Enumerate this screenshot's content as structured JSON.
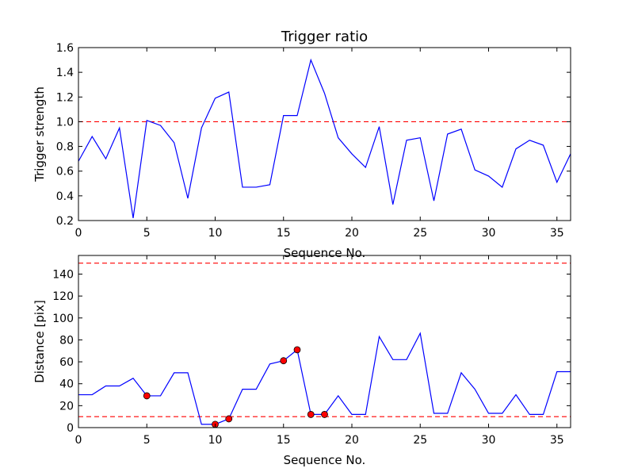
{
  "chart_data": [
    {
      "type": "line",
      "title": "Trigger ratio",
      "xlabel": "Sequence No.",
      "ylabel": "Trigger strength",
      "xlim": [
        0,
        36
      ],
      "ylim": [
        0.2,
        1.6
      ],
      "xticks": [
        0,
        5,
        10,
        15,
        20,
        25,
        30,
        35
      ],
      "yticks": [
        0.2,
        0.4,
        0.6,
        0.8,
        1.0,
        1.2,
        1.4,
        1.6
      ],
      "ytick_labels": [
        "0.2",
        "0.4",
        "0.6",
        "0.8",
        "1.0",
        "1.2",
        "1.4",
        "1.6"
      ],
      "grid": false,
      "series": [
        {
          "color": "#0000ff",
          "x": [
            0,
            1,
            2,
            3,
            4,
            5,
            6,
            7,
            8,
            9,
            10,
            11,
            12,
            13,
            14,
            15,
            16,
            17,
            18,
            19,
            20,
            21,
            22,
            23,
            24,
            25,
            26,
            27,
            28,
            29,
            30,
            31,
            32,
            33,
            34,
            35,
            36
          ],
          "y": [
            0.68,
            0.88,
            0.7,
            0.95,
            0.22,
            1.01,
            0.97,
            0.83,
            0.38,
            0.95,
            1.19,
            1.24,
            0.47,
            0.47,
            0.49,
            1.05,
            1.05,
            1.5,
            1.23,
            0.87,
            0.74,
            0.63,
            0.96,
            0.33,
            0.85,
            0.87,
            0.36,
            0.9,
            0.94,
            0.61,
            0.56,
            0.47,
            0.78,
            0.85,
            0.81,
            0.51,
            0.74
          ]
        }
      ],
      "reference_lines": [
        {
          "y": 1.0,
          "color": "#ff0000",
          "style": "dashed"
        }
      ]
    },
    {
      "type": "line",
      "title": "",
      "xlabel": "Sequence No.",
      "ylabel": "Distance [pix]",
      "xlim": [
        0,
        36
      ],
      "ylim": [
        0,
        157
      ],
      "xticks": [
        0,
        5,
        10,
        15,
        20,
        25,
        30,
        35
      ],
      "yticks": [
        0,
        20,
        40,
        60,
        80,
        100,
        120,
        140
      ],
      "grid": false,
      "series": [
        {
          "color": "#0000ff",
          "x": [
            0,
            1,
            2,
            3,
            4,
            5,
            6,
            7,
            8,
            9,
            10,
            11,
            12,
            13,
            14,
            15,
            16,
            17,
            18,
            19,
            20,
            21,
            22,
            23,
            24,
            25,
            26,
            27,
            28,
            29,
            30,
            31,
            32,
            33,
            34,
            35,
            36
          ],
          "y": [
            30,
            30,
            38,
            38,
            45,
            29,
            29,
            50,
            50,
            3,
            3,
            8,
            35,
            35,
            58,
            61,
            71,
            12,
            12,
            29,
            12,
            12,
            83,
            62,
            62,
            86,
            13,
            13,
            50,
            35,
            13,
            13,
            30,
            12,
            12,
            51,
            51
          ]
        }
      ],
      "markers": {
        "color": "#ff0000",
        "x": [
          5,
          10,
          11,
          15,
          16,
          17,
          18
        ],
        "y": [
          29,
          3,
          8,
          61,
          71,
          12,
          12
        ]
      },
      "reference_lines": [
        {
          "y": 150,
          "color": "#ff0000",
          "style": "dashed"
        },
        {
          "y": 10,
          "color": "#ff0000",
          "style": "dashed"
        }
      ]
    }
  ]
}
